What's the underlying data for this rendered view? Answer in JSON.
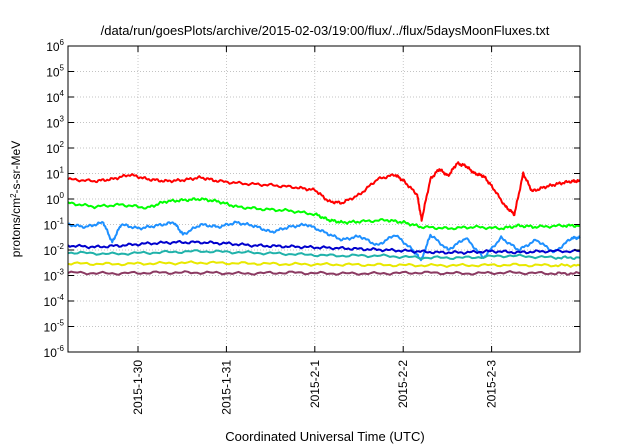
{
  "chart_data": {
    "type": "line",
    "title": "/data/run/goesPlots/archive/2015-02-03/19:00/flux/../flux/5daysMoonFluxes.txt",
    "xlabel": "Coordinated Universal Time (UTC)",
    "ylabel": {
      "prefix": "protons/cm",
      "sup": "2",
      "suffix": "-s-sr-MeV"
    },
    "yscale": "log",
    "ylim": [
      1e-06,
      1000000.0
    ],
    "xlim": [
      "2015-01-29 05:00",
      "2015-02-03 19:00"
    ],
    "grid": true,
    "legend": "none",
    "yticks": [
      {
        "value": 1e-06,
        "base": "10",
        "exp": "-6"
      },
      {
        "value": 1e-05,
        "base": "10",
        "exp": "-5"
      },
      {
        "value": 0.0001,
        "base": "10",
        "exp": "-4"
      },
      {
        "value": 0.001,
        "base": "10",
        "exp": "-3"
      },
      {
        "value": 0.01,
        "base": "10",
        "exp": "-2"
      },
      {
        "value": 0.1,
        "base": "10",
        "exp": "-1"
      },
      {
        "value": 1,
        "base": "10",
        "exp": "0"
      },
      {
        "value": 10,
        "base": "10",
        "exp": "1"
      },
      {
        "value": 100,
        "base": "10",
        "exp": "2"
      },
      {
        "value": 1000,
        "base": "10",
        "exp": "3"
      },
      {
        "value": 10000,
        "base": "10",
        "exp": "4"
      },
      {
        "value": 100000,
        "base": "10",
        "exp": "5"
      },
      {
        "value": 1000000,
        "base": "10",
        "exp": "6"
      }
    ],
    "xticks": [
      {
        "day": 0.792,
        "label": "2015-1-30"
      },
      {
        "day": 1.792,
        "label": "2015-1-31"
      },
      {
        "day": 2.792,
        "label": "2015-2-1"
      },
      {
        "day": 3.792,
        "label": "2015-2-2"
      },
      {
        "day": 4.792,
        "label": "2015-2-3"
      }
    ],
    "series": [
      {
        "color": "#ff0000",
        "points": [
          [
            0,
            6
          ],
          [
            0.3,
            5
          ],
          [
            0.5,
            6
          ],
          [
            0.7,
            9
          ],
          [
            0.9,
            6
          ],
          [
            1.1,
            5
          ],
          [
            1.3,
            5.5
          ],
          [
            1.5,
            7
          ],
          [
            1.7,
            5
          ],
          [
            2.0,
            4
          ],
          [
            2.3,
            3.5
          ],
          [
            2.6,
            2.8
          ],
          [
            2.8,
            2.2
          ],
          [
            2.95,
            0.8
          ],
          [
            3.1,
            0.7
          ],
          [
            3.3,
            1.5
          ],
          [
            3.5,
            6
          ],
          [
            3.7,
            9
          ],
          [
            3.8,
            5
          ],
          [
            3.95,
            1.5
          ],
          [
            4.0,
            0.15
          ],
          [
            4.1,
            6
          ],
          [
            4.2,
            15
          ],
          [
            4.3,
            8
          ],
          [
            4.4,
            25
          ],
          [
            4.5,
            20
          ],
          [
            4.6,
            10
          ],
          [
            4.7,
            8
          ],
          [
            4.8,
            3
          ],
          [
            4.95,
            0.5
          ],
          [
            5.05,
            0.25
          ],
          [
            5.15,
            10
          ],
          [
            5.25,
            2
          ],
          [
            5.4,
            3
          ],
          [
            5.55,
            4
          ],
          [
            5.7,
            5
          ],
          [
            5.79,
            5
          ]
        ]
      },
      {
        "color": "#00ff00",
        "points": [
          [
            0,
            0.7
          ],
          [
            0.3,
            0.5
          ],
          [
            0.6,
            0.6
          ],
          [
            0.9,
            0.45
          ],
          [
            1.1,
            0.8
          ],
          [
            1.3,
            0.9
          ],
          [
            1.5,
            1.0
          ],
          [
            1.7,
            0.8
          ],
          [
            1.9,
            0.5
          ],
          [
            2.2,
            0.4
          ],
          [
            2.5,
            0.35
          ],
          [
            2.8,
            0.25
          ],
          [
            2.95,
            0.15
          ],
          [
            3.1,
            0.12
          ],
          [
            3.3,
            0.13
          ],
          [
            3.6,
            0.15
          ],
          [
            3.8,
            0.12
          ],
          [
            4.0,
            0.08
          ],
          [
            4.3,
            0.07
          ],
          [
            4.6,
            0.08
          ],
          [
            4.9,
            0.07
          ],
          [
            5.1,
            0.09
          ],
          [
            5.3,
            0.08
          ],
          [
            5.6,
            0.09
          ],
          [
            5.79,
            0.09
          ]
        ]
      },
      {
        "color": "#1e90ff",
        "points": [
          [
            0,
            0.1
          ],
          [
            0.2,
            0.08
          ],
          [
            0.4,
            0.12
          ],
          [
            0.5,
            0.02
          ],
          [
            0.6,
            0.1
          ],
          [
            0.8,
            0.07
          ],
          [
            1.0,
            0.09
          ],
          [
            1.2,
            0.12
          ],
          [
            1.3,
            0.04
          ],
          [
            1.5,
            0.1
          ],
          [
            1.7,
            0.08
          ],
          [
            1.9,
            0.12
          ],
          [
            2.1,
            0.09
          ],
          [
            2.3,
            0.05
          ],
          [
            2.5,
            0.08
          ],
          [
            2.7,
            0.1
          ],
          [
            2.9,
            0.05
          ],
          [
            3.1,
            0.025
          ],
          [
            3.3,
            0.035
          ],
          [
            3.5,
            0.015
          ],
          [
            3.7,
            0.04
          ],
          [
            3.9,
            0.01
          ],
          [
            4.0,
            0.004
          ],
          [
            4.1,
            0.04
          ],
          [
            4.3,
            0.01
          ],
          [
            4.5,
            0.03
          ],
          [
            4.7,
            0.005
          ],
          [
            4.9,
            0.03
          ],
          [
            5.1,
            0.01
          ],
          [
            5.3,
            0.025
          ],
          [
            5.5,
            0.008
          ],
          [
            5.7,
            0.03
          ],
          [
            5.79,
            0.03
          ]
        ]
      },
      {
        "color": "#0000cd",
        "points": [
          [
            0,
            0.015
          ],
          [
            0.3,
            0.013
          ],
          [
            0.6,
            0.015
          ],
          [
            0.9,
            0.018
          ],
          [
            1.2,
            0.02
          ],
          [
            1.5,
            0.02
          ],
          [
            1.8,
            0.018
          ],
          [
            2.1,
            0.015
          ],
          [
            2.4,
            0.014
          ],
          [
            2.7,
            0.013
          ],
          [
            3.0,
            0.012
          ],
          [
            3.3,
            0.011
          ],
          [
            3.6,
            0.01
          ],
          [
            3.9,
            0.009
          ],
          [
            4.2,
            0.008
          ],
          [
            4.5,
            0.008
          ],
          [
            4.8,
            0.009
          ],
          [
            5.1,
            0.008
          ],
          [
            5.4,
            0.009
          ],
          [
            5.79,
            0.009
          ]
        ]
      },
      {
        "color": "#20b2aa",
        "points": [
          [
            0,
            0.008
          ],
          [
            0.5,
            0.007
          ],
          [
            1.0,
            0.008
          ],
          [
            1.5,
            0.009
          ],
          [
            2.0,
            0.008
          ],
          [
            2.5,
            0.007
          ],
          [
            3.0,
            0.006
          ],
          [
            3.5,
            0.006
          ],
          [
            4.0,
            0.005
          ],
          [
            4.5,
            0.005
          ],
          [
            5.0,
            0.006
          ],
          [
            5.5,
            0.005
          ],
          [
            5.79,
            0.005
          ]
        ]
      },
      {
        "color": "#e8e800",
        "points": [
          [
            0,
            0.003
          ],
          [
            0.5,
            0.0028
          ],
          [
            1.0,
            0.003
          ],
          [
            1.5,
            0.0032
          ],
          [
            2.0,
            0.003
          ],
          [
            2.5,
            0.0028
          ],
          [
            3.0,
            0.0027
          ],
          [
            3.5,
            0.0026
          ],
          [
            4.0,
            0.0025
          ],
          [
            4.5,
            0.0025
          ],
          [
            5.0,
            0.0026
          ],
          [
            5.5,
            0.0025
          ],
          [
            5.79,
            0.0025
          ]
        ]
      },
      {
        "color": "#8b3a62",
        "points": [
          [
            0,
            0.0013
          ],
          [
            0.5,
            0.0012
          ],
          [
            1.0,
            0.0013
          ],
          [
            1.5,
            0.0013
          ],
          [
            2.0,
            0.0012
          ],
          [
            2.5,
            0.0013
          ],
          [
            3.0,
            0.0012
          ],
          [
            3.5,
            0.0012
          ],
          [
            4.0,
            0.0013
          ],
          [
            4.5,
            0.0012
          ],
          [
            5.0,
            0.0013
          ],
          [
            5.5,
            0.0012
          ],
          [
            5.79,
            0.0012
          ]
        ]
      }
    ]
  }
}
